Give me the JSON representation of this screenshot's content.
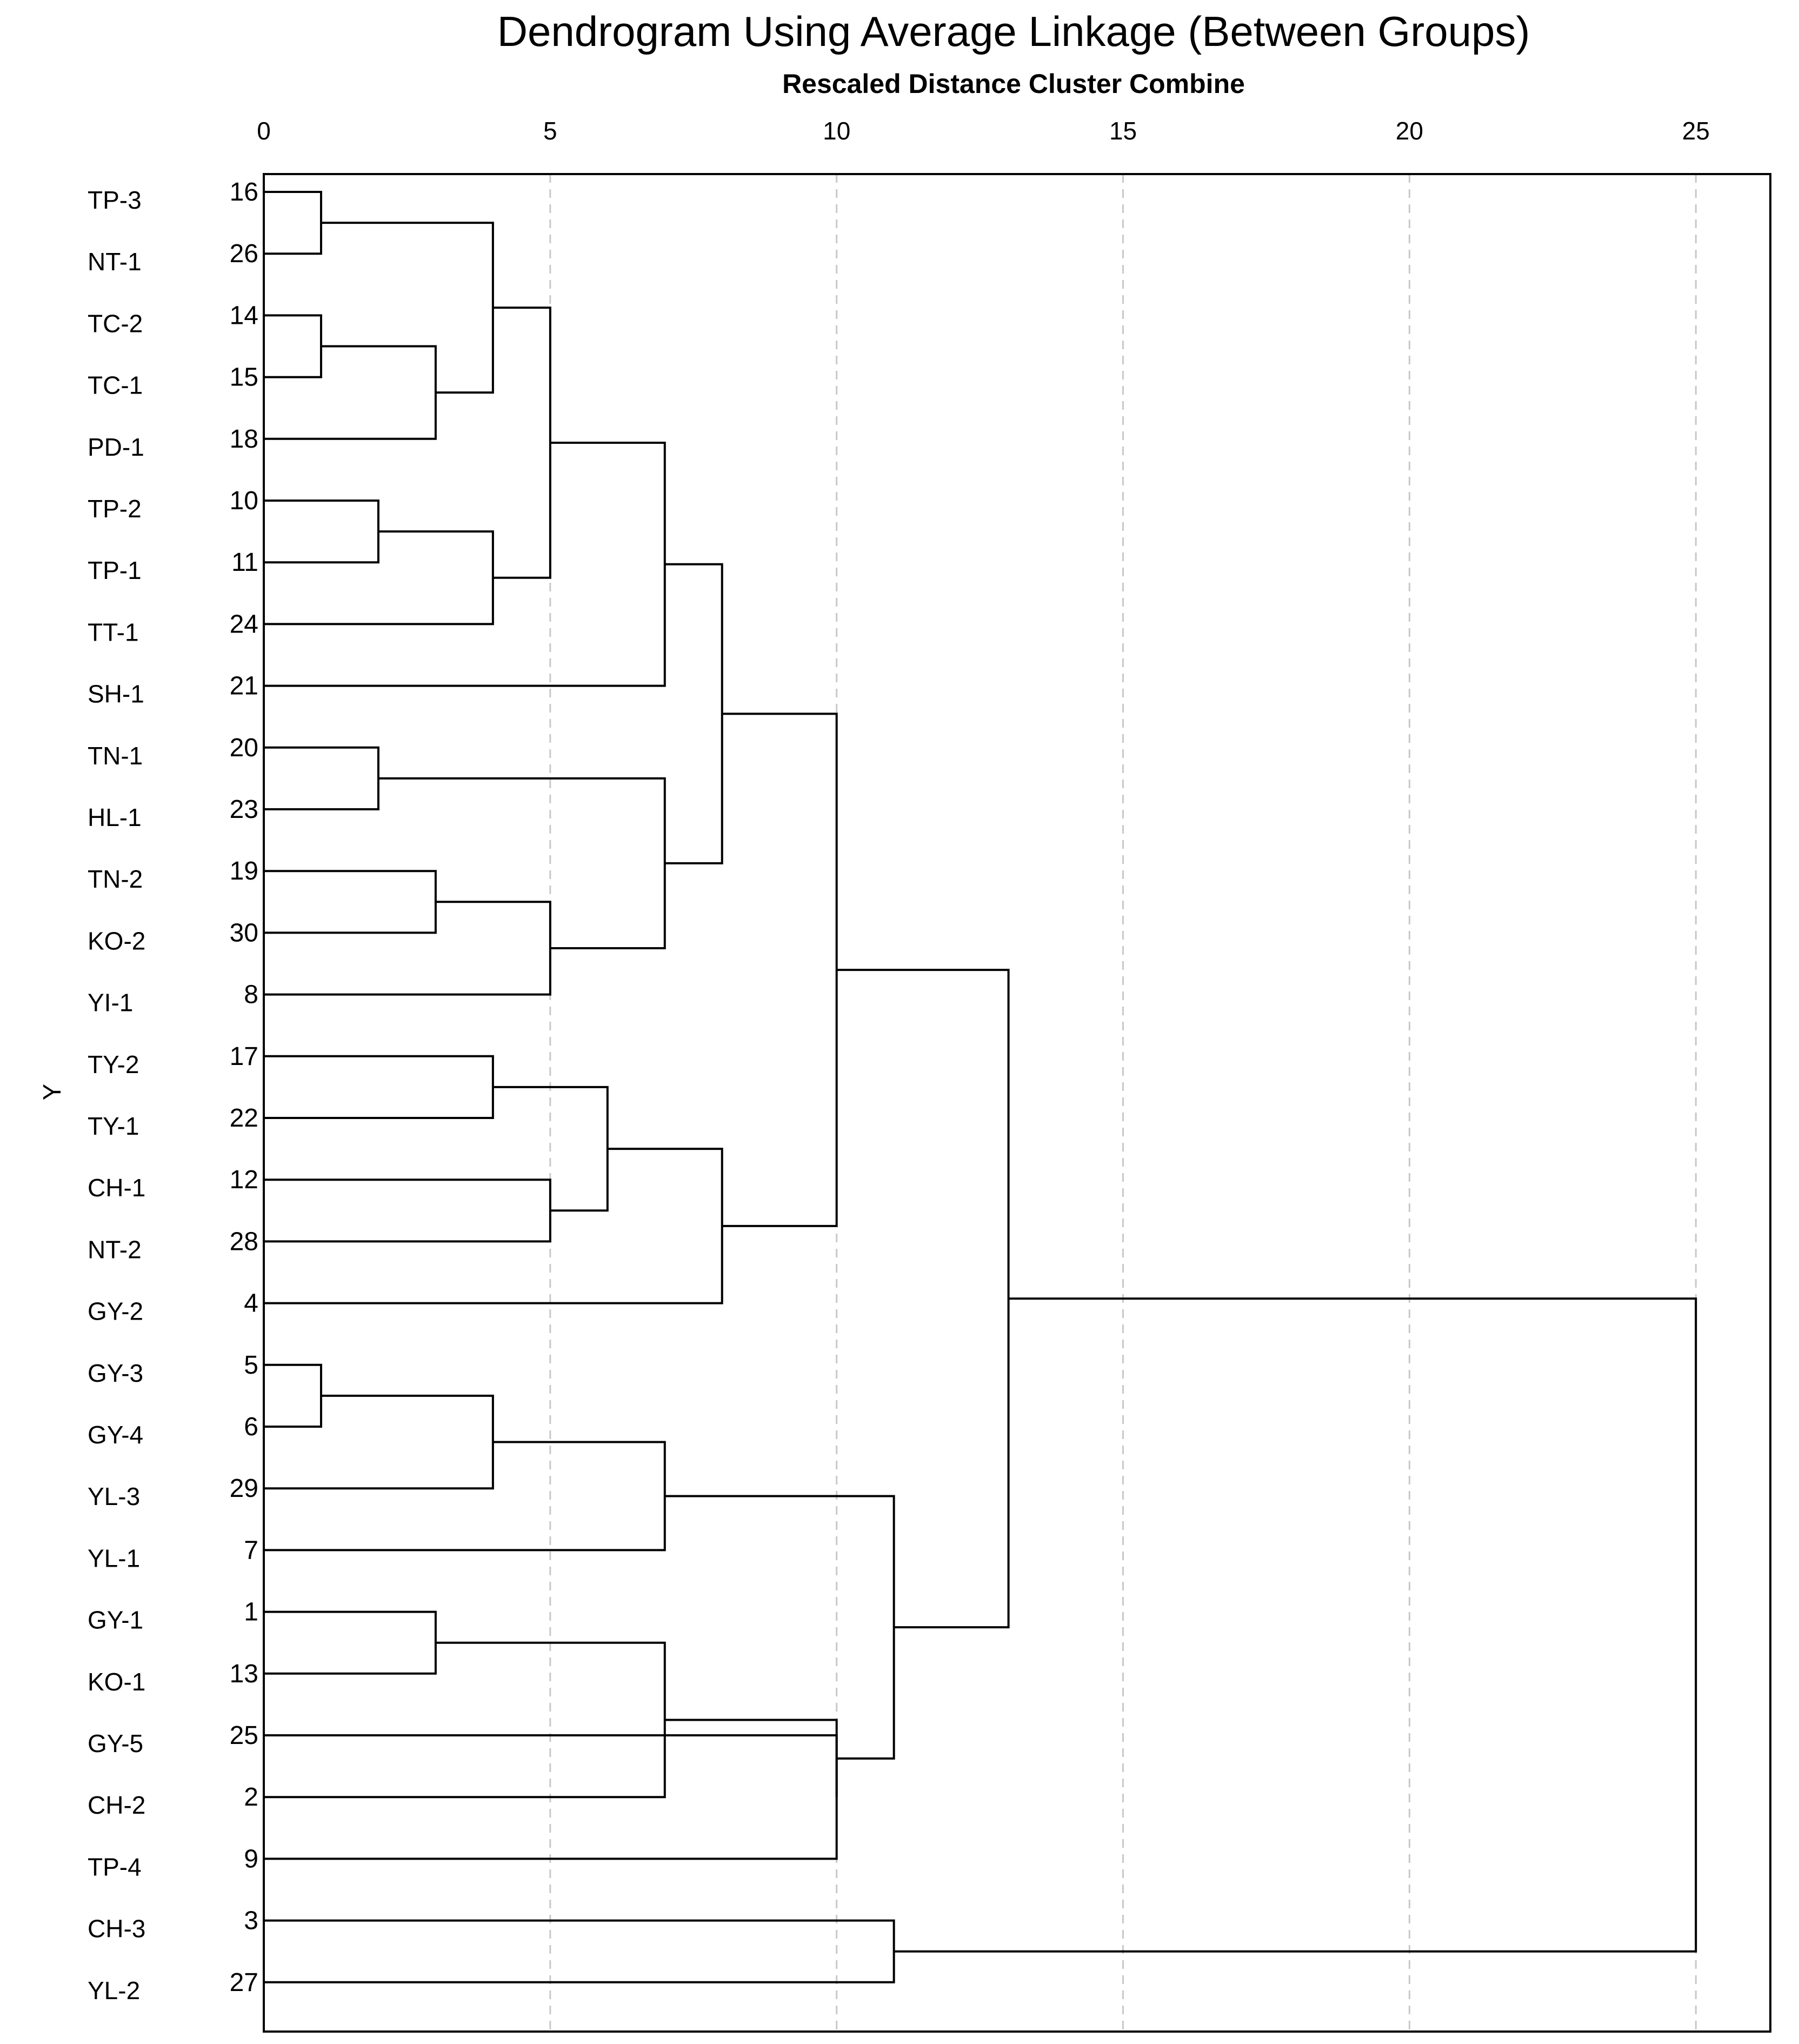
{
  "chart_data": {
    "type": "dendrogram",
    "title": "Dendrogram Using Average Linkage (Between Groups)",
    "subtitle": "Rescaled Distance Cluster Combine",
    "ylabel": "Y",
    "xlim": [
      0,
      26.3
    ],
    "xticks": [
      0,
      5,
      10,
      15,
      20,
      25
    ],
    "grid": true,
    "leaves": [
      {
        "label": "TP-3",
        "case": "16"
      },
      {
        "label": "NT-1",
        "case": "26"
      },
      {
        "label": "TC-2",
        "case": "14"
      },
      {
        "label": "TC-1",
        "case": "15"
      },
      {
        "label": "PD-1",
        "case": "18"
      },
      {
        "label": "TP-2",
        "case": "10"
      },
      {
        "label": "TP-1",
        "case": "11"
      },
      {
        "label": "TT-1",
        "case": "24"
      },
      {
        "label": "SH-1",
        "case": "21"
      },
      {
        "label": "TN-1",
        "case": "20"
      },
      {
        "label": "HL-1",
        "case": "23"
      },
      {
        "label": "TN-2",
        "case": "19"
      },
      {
        "label": "KO-2",
        "case": "30"
      },
      {
        "label": "YI-1",
        "case": "8"
      },
      {
        "label": "TY-2",
        "case": "17"
      },
      {
        "label": "TY-1",
        "case": "22"
      },
      {
        "label": "CH-1",
        "case": "12"
      },
      {
        "label": "NT-2",
        "case": "28"
      },
      {
        "label": "GY-2",
        "case": "4"
      },
      {
        "label": "GY-3",
        "case": "5"
      },
      {
        "label": "GY-4",
        "case": "6"
      },
      {
        "label": "YL-3",
        "case": "29"
      },
      {
        "label": "YL-1",
        "case": "7"
      },
      {
        "label": "GY-1",
        "case": "1"
      },
      {
        "label": "KO-1",
        "case": "13"
      },
      {
        "label": "GY-5",
        "case": "25"
      },
      {
        "label": "CH-2",
        "case": "2"
      },
      {
        "label": "TP-4",
        "case": "9"
      },
      {
        "label": "CH-3",
        "case": "3"
      },
      {
        "label": "YL-2",
        "case": "27"
      }
    ],
    "merges": [
      {
        "id": "A",
        "left": 0,
        "right": 1,
        "dist": 1
      },
      {
        "id": "B",
        "left": 2,
        "right": 3,
        "dist": 1
      },
      {
        "id": "C",
        "left": "B",
        "right": 4,
        "dist": 3
      },
      {
        "id": "D",
        "left": "A",
        "right": "C",
        "dist": 4
      },
      {
        "id": "E",
        "left": 5,
        "right": 6,
        "dist": 2
      },
      {
        "id": "F",
        "left": "E",
        "right": 7,
        "dist": 4
      },
      {
        "id": "G",
        "left": "D",
        "right": "F",
        "dist": 5
      },
      {
        "id": "H",
        "left": "G",
        "right": 8,
        "dist": 7
      },
      {
        "id": "I",
        "left": 9,
        "right": 10,
        "dist": 2
      },
      {
        "id": "J",
        "left": 11,
        "right": 12,
        "dist": 3
      },
      {
        "id": "K",
        "left": "J",
        "right": 13,
        "dist": 5
      },
      {
        "id": "L",
        "left": "I",
        "right": "K",
        "dist": 7
      },
      {
        "id": "M",
        "left": "H",
        "right": "L",
        "dist": 8
      },
      {
        "id": "N",
        "left": 14,
        "right": 15,
        "dist": 4
      },
      {
        "id": "O",
        "left": 16,
        "right": 17,
        "dist": 5
      },
      {
        "id": "P",
        "left": "N",
        "right": "O",
        "dist": 6
      },
      {
        "id": "Q",
        "left": "P",
        "right": 18,
        "dist": 8
      },
      {
        "id": "R",
        "left": "M",
        "right": "Q",
        "dist": 10
      },
      {
        "id": "S",
        "left": 19,
        "right": 20,
        "dist": 1
      },
      {
        "id": "T",
        "left": "S",
        "right": 21,
        "dist": 4
      },
      {
        "id": "U",
        "left": "T",
        "right": 22,
        "dist": 7
      },
      {
        "id": "V",
        "left": 23,
        "right": 24,
        "dist": 3
      },
      {
        "id": "W",
        "left": "V",
        "right": 26,
        "dist": 7
      },
      {
        "id": "X",
        "left": 25,
        "right": 27,
        "dist": 10
      },
      {
        "id": "Y",
        "left": "W",
        "right": "X",
        "dist": 10
      },
      {
        "id": "Z",
        "left": "U",
        "right": "Y",
        "dist": 11
      },
      {
        "id": "AA",
        "left": "R",
        "right": "Z",
        "dist": 13
      },
      {
        "id": "AB",
        "left": 28,
        "right": 29,
        "dist": 11
      },
      {
        "id": "AC",
        "left": "AA",
        "right": "AB",
        "dist": 25
      }
    ]
  }
}
